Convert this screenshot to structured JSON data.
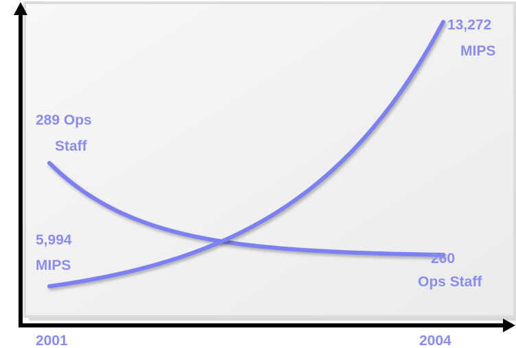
{
  "chart_data": {
    "type": "line",
    "x": [
      "2001",
      "2004"
    ],
    "x_tick_labels": [
      "2001",
      "2004"
    ],
    "series": [
      {
        "key": "mips",
        "values": [
          5994,
          13272
        ],
        "color": "#7c80f0"
      },
      {
        "key": "ops_staff",
        "values": [
          289,
          260
        ],
        "color": "#7c80f0"
      }
    ],
    "annotations": {
      "mips_start": [
        "5,994",
        "MIPS"
      ],
      "mips_end": [
        "13,272",
        "MIPS"
      ],
      "staff_start": [
        "289 Ops",
        "Staff"
      ],
      "staff_end": [
        "260",
        "Ops Staff"
      ]
    },
    "title": "",
    "xlabel": "",
    "ylabel": "",
    "grid": false,
    "legend": "none",
    "colors": {
      "line": "#7c80f0",
      "text": "#8a8cf2",
      "axis": "#000000",
      "panel": "#fafafa"
    }
  }
}
